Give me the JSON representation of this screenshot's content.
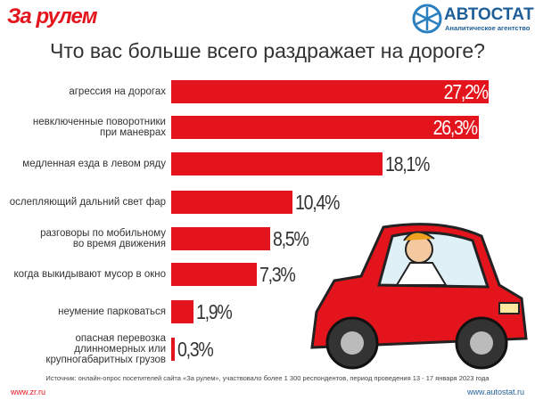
{
  "header": {
    "brand": "За рулем",
    "agency": "АВТОСТАТ",
    "agency_sub": "Аналитическое агентство"
  },
  "chart_data": {
    "type": "bar",
    "title": "Что вас больше всего раздражает на дороге?",
    "categories": [
      "агрессия на дорогах",
      "невключенные поворотники\nпри маневрах",
      "медленная езда в левом ряду",
      "ослепляющий дальний свет фар",
      "разговоры по мобильному\nво время движения",
      "когда выкидывают мусор в окно",
      "неумение парковаться",
      "опасная перевозка\nдлинномерных или\nкрупногабаритных грузов"
    ],
    "values": [
      27.2,
      26.3,
      18.1,
      10.4,
      8.5,
      7.3,
      1.9,
      0.3
    ],
    "value_labels": [
      "27,2%",
      "26,3%",
      "18,1%",
      "10,4%",
      "8,5%",
      "7,3%",
      "1,9%",
      "0,3%"
    ],
    "color": "#e3141c",
    "source": "Источник: онлайн-опрос посетителей сайта «За рулем», участвовало более 1 300 респондентов, период проведения 13 - 17 января 2023 года",
    "footer_left": "www.zr.ru",
    "footer_right": "www.autostat.ru"
  }
}
